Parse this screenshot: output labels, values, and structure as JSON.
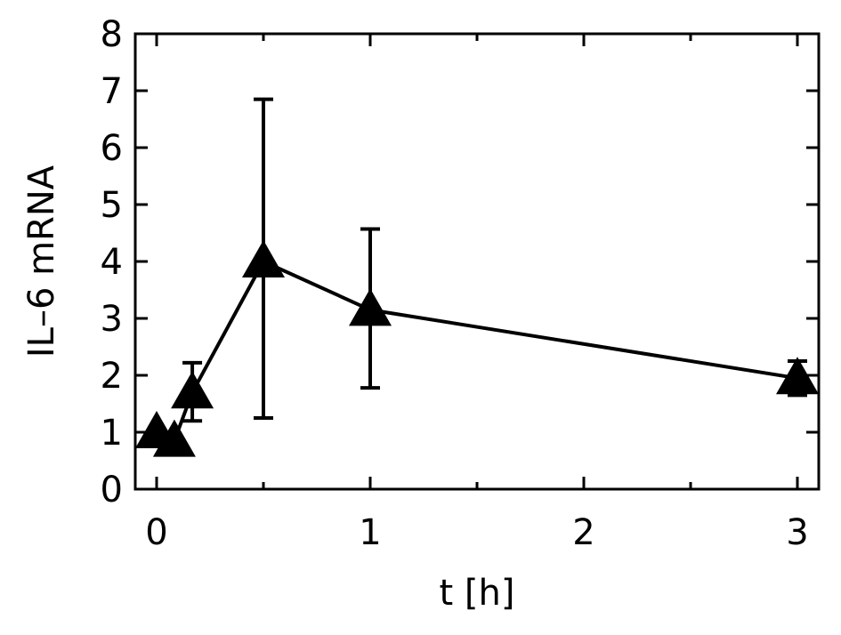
{
  "chart_data": {
    "type": "line",
    "title": "",
    "xlabel": "t [h]",
    "ylabel": "IL–6 mRNA",
    "xlim": [
      -0.1,
      3.1
    ],
    "ylim": [
      0,
      8
    ],
    "xticks": [
      0,
      1,
      2,
      3
    ],
    "xtick_labels": [
      "0",
      "1",
      "2",
      "3"
    ],
    "yticks": [
      0,
      1,
      2,
      3,
      4,
      5,
      6,
      7,
      8
    ],
    "ytick_labels": [
      "0",
      "1",
      "2",
      "3",
      "4",
      "5",
      "6",
      "7",
      "8"
    ],
    "grid": false,
    "legend": "none",
    "marker": "triangle",
    "color": "#000000",
    "series": [
      {
        "x": [
          0,
          0.083,
          0.167,
          0.5,
          1,
          3
        ],
        "values": [
          1.0,
          0.85,
          1.7,
          4.0,
          3.15,
          1.95
        ],
        "error_low": [
          null,
          null,
          1.2,
          1.25,
          1.78,
          1.65
        ],
        "error_high": [
          null,
          null,
          2.22,
          6.85,
          4.57,
          2.25
        ]
      }
    ]
  }
}
